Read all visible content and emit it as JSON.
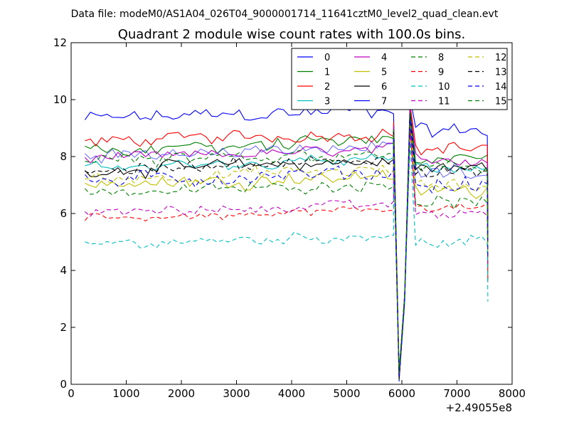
{
  "chart_data": {
    "type": "line",
    "suptitle": "Data file: modeM0/AS1A04_026T04_9000001714_11641cztM0_level2_quad_clean.evt",
    "title": "Quadrant 2 module wise count rates with 100.0s bins.",
    "xlabel": "",
    "ylabel": "",
    "x_offset_label": "+2.49055e8",
    "xlim": [
      0,
      8000
    ],
    "ylim": [
      0,
      12
    ],
    "xticks": [
      0,
      1000,
      2000,
      3000,
      4000,
      5000,
      6000,
      7000,
      8000
    ],
    "yticks": [
      0,
      2,
      4,
      6,
      8,
      10,
      12
    ],
    "grid": false,
    "legend_position": "top-right",
    "legend_columns": 4,
    "x_start": 250,
    "x_step": 100,
    "dip_x": [
      5850,
      5950,
      6050,
      6150
    ],
    "dip_values": [
      9.3,
      0.3,
      3.0,
      9.9
    ],
    "series": [
      {
        "name": "0",
        "color": "#0000ff",
        "dash": "solid",
        "level": 9.3,
        "noise": 0.35,
        "dip_level": 8.9
      },
      {
        "name": "1",
        "color": "#008000",
        "dash": "solid",
        "level": 8.2,
        "noise": 0.3,
        "dip_level": 8.0
      },
      {
        "name": "2",
        "color": "#ff0000",
        "dash": "solid",
        "level": 8.5,
        "noise": 0.3,
        "dip_level": 8.3
      },
      {
        "name": "3",
        "color": "#00bfbf",
        "dash": "solid",
        "level": 7.6,
        "noise": 0.25,
        "dip_level": 7.6
      },
      {
        "name": "4",
        "color": "#bf00bf",
        "dash": "solid",
        "level": 7.9,
        "noise": 0.25,
        "dip_level": 7.9
      },
      {
        "name": "5",
        "color": "#bfbf00",
        "dash": "solid",
        "level": 7.0,
        "noise": 0.3,
        "dip_level": 6.8
      },
      {
        "name": "6",
        "color": "#000000",
        "dash": "solid",
        "level": 7.5,
        "noise": 0.3,
        "dip_level": 7.6
      },
      {
        "name": "7",
        "color": "#0000ff",
        "dash": "solid",
        "level": 8.0,
        "noise": 0.3,
        "dip_level": 7.5
      },
      {
        "name": "8",
        "color": "#008000",
        "dash": "dashed",
        "level": 6.7,
        "noise": 0.25,
        "dip_level": 6.4
      },
      {
        "name": "9",
        "color": "#ff0000",
        "dash": "dashed",
        "level": 5.8,
        "noise": 0.2,
        "dip_level": 6.2
      },
      {
        "name": "10",
        "color": "#00bfbf",
        "dash": "dashed",
        "level": 4.9,
        "noise": 0.25,
        "dip_level": 5.0
      },
      {
        "name": "11",
        "color": "#bf00bf",
        "dash": "dashed",
        "level": 6.0,
        "noise": 0.25,
        "dip_level": 6.0
      },
      {
        "name": "12",
        "color": "#bfbf00",
        "dash": "dashed",
        "level": 7.2,
        "noise": 0.3,
        "dip_level": 7.0
      },
      {
        "name": "13",
        "color": "#000000",
        "dash": "dashed",
        "level": 7.5,
        "noise": 0.3,
        "dip_level": 7.6
      },
      {
        "name": "14",
        "color": "#0000ff",
        "dash": "dashed",
        "level": 7.1,
        "noise": 0.35,
        "dip_level": 7.0
      },
      {
        "name": "15",
        "color": "#008000",
        "dash": "dashed",
        "level": 7.8,
        "noise": 0.3,
        "dip_level": 7.6
      }
    ]
  }
}
